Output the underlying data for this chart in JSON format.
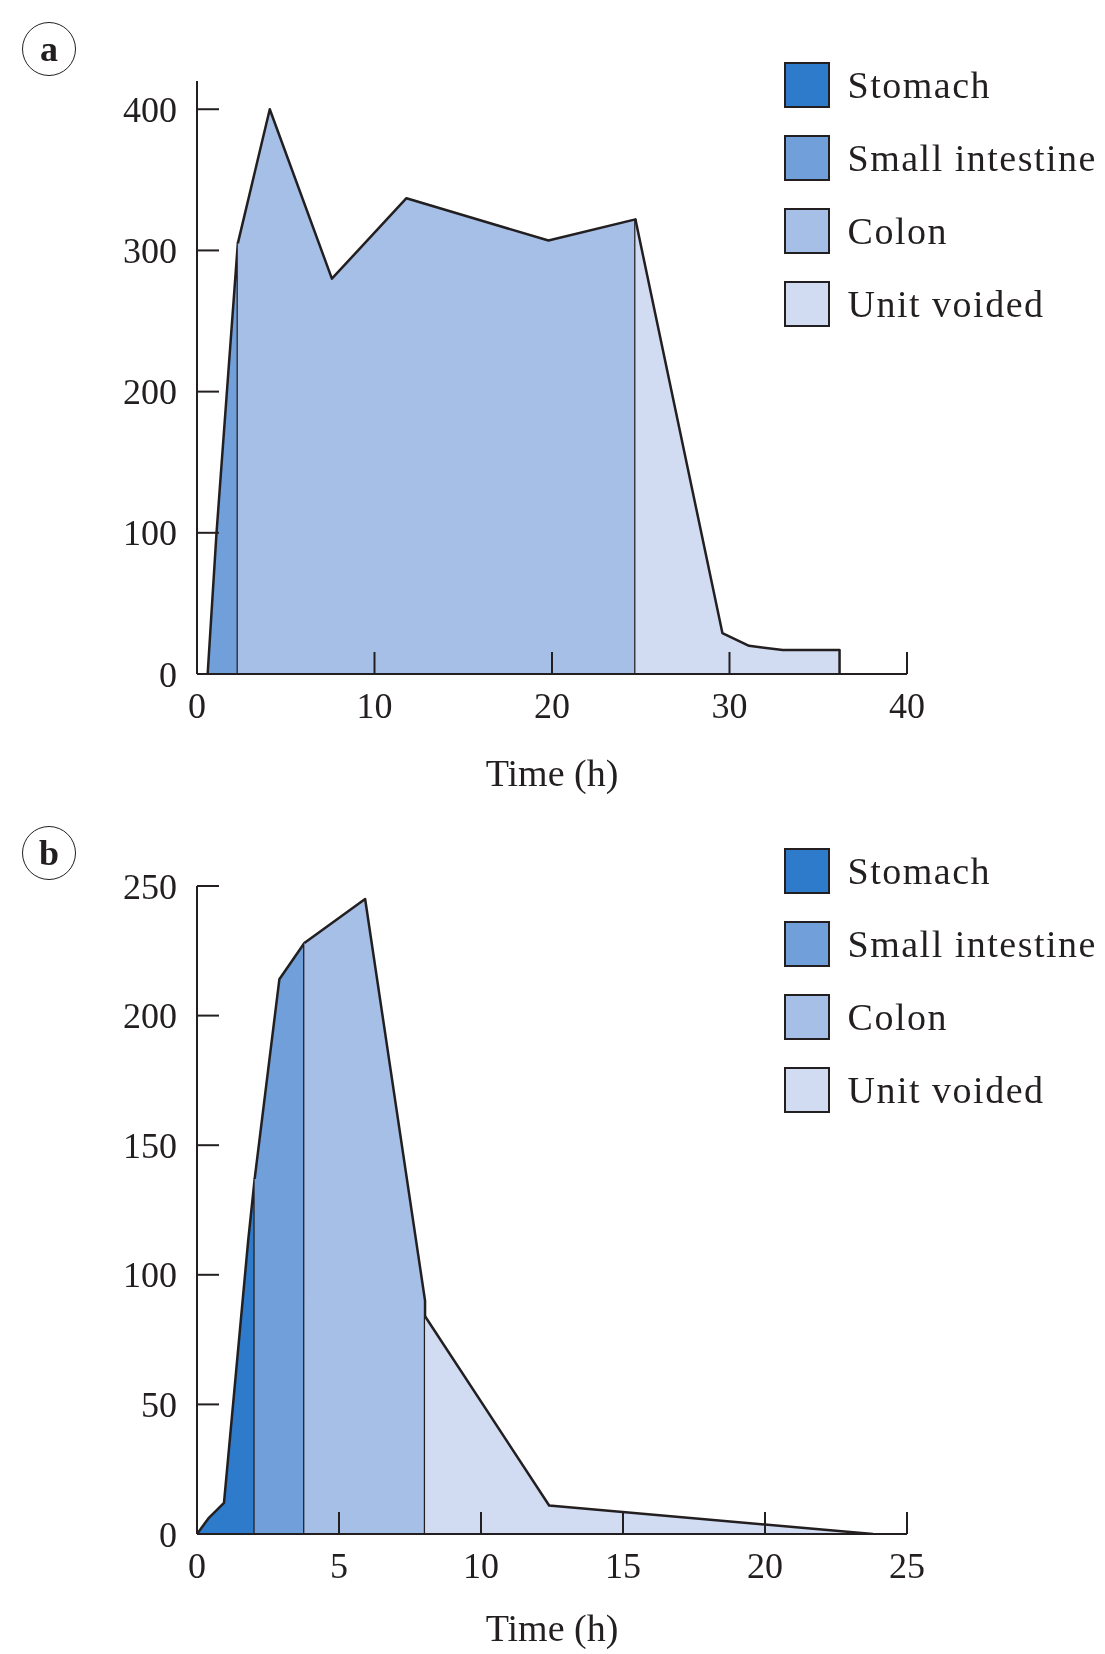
{
  "chart_data": [
    {
      "type": "area",
      "title": "a",
      "xlabel": "Time (h)",
      "xlim": [
        0,
        40
      ],
      "xticks": [
        0,
        10,
        20,
        30,
        40
      ],
      "ylim": [
        0,
        420
      ],
      "yticks": [
        0,
        100,
        200,
        300,
        400
      ],
      "legend": "top right",
      "series": [
        {
          "name": "Stomach",
          "color": "#2e7bcb"
        },
        {
          "name": "Small intestine",
          "color": "#709fd9",
          "x": [
            0.6,
            1.1,
            2.3,
            2.3
          ],
          "values": [
            0,
            100,
            305,
            0
          ]
        },
        {
          "name": "Colon",
          "color": "#a6bfe7",
          "x": [
            2.3,
            4.1,
            7.6,
            11.8,
            19.8,
            24.7,
            24.7
          ],
          "values": [
            305,
            400,
            280,
            337,
            307,
            322,
            0
          ]
        },
        {
          "name": "Unit voided",
          "color": "#d1dcf2",
          "x": [
            24.7,
            29.6,
            31.1,
            33.0,
            36.2,
            36.2
          ],
          "values": [
            322,
            29,
            20,
            17,
            17,
            0
          ]
        }
      ]
    },
    {
      "type": "area",
      "title": "b",
      "xlabel": "Time (h)",
      "xlim": [
        0,
        25
      ],
      "xticks": [
        0,
        5,
        10,
        15,
        20,
        25
      ],
      "ylim": [
        0,
        250
      ],
      "yticks": [
        0,
        50,
        100,
        150,
        200,
        250
      ],
      "legend": "top right",
      "series": [
        {
          "name": "Stomach",
          "color": "#2e7bcb",
          "x": [
            0,
            0.4,
            0.95,
            1.8,
            2.03,
            2.03
          ],
          "values": [
            0,
            6,
            12,
            113,
            137,
            0
          ]
        },
        {
          "name": "Small intestine",
          "color": "#709fd9",
          "x": [
            2.03,
            2.9,
            3.78,
            3.78
          ],
          "values": [
            137,
            214,
            228,
            0
          ]
        },
        {
          "name": "Colon",
          "color": "#a6bfe7",
          "x": [
            3.78,
            5.92,
            8.03,
            8.03
          ],
          "values": [
            228,
            245,
            90,
            0
          ]
        },
        {
          "name": "Unit voided",
          "color": "#d1dcf2",
          "x": [
            8.03,
            12.4,
            23.8
          ],
          "values": [
            84,
            11,
            0
          ]
        }
      ]
    }
  ]
}
